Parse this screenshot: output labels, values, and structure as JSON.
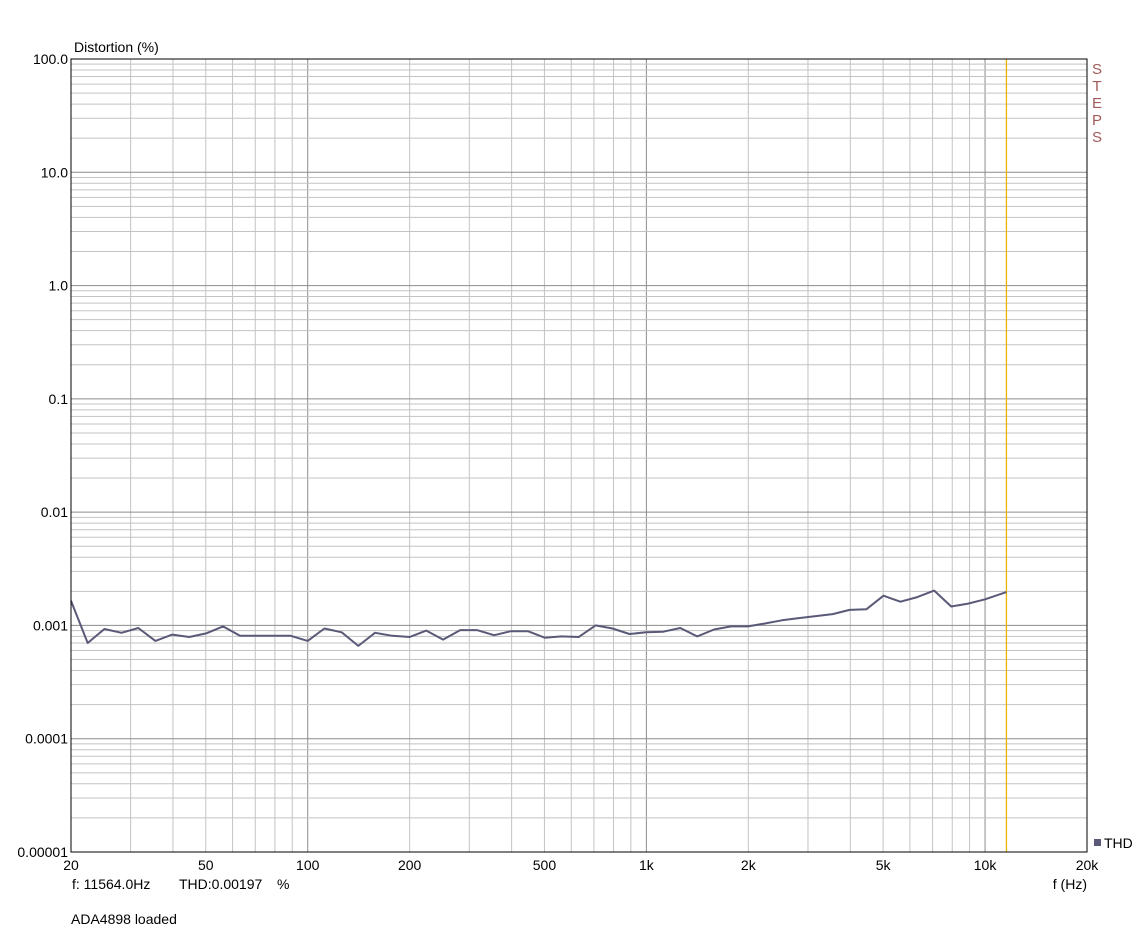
{
  "chart_data": {
    "type": "line",
    "ylabel": "Distortion (%)",
    "xlabel": "f (Hz)",
    "x_scale": "log",
    "y_scale": "log",
    "xlim": [
      20,
      20000
    ],
    "ylim": [
      1e-05,
      100
    ],
    "grid": true,
    "x_ticks": [
      {
        "value": 20,
        "label": "20"
      },
      {
        "value": 50,
        "label": "50"
      },
      {
        "value": 100,
        "label": "100"
      },
      {
        "value": 200,
        "label": "200"
      },
      {
        "value": 500,
        "label": "500"
      },
      {
        "value": 1000,
        "label": "1k"
      },
      {
        "value": 2000,
        "label": "2k"
      },
      {
        "value": 5000,
        "label": "5k"
      },
      {
        "value": 10000,
        "label": "10k"
      },
      {
        "value": 20000,
        "label": "20k"
      }
    ],
    "y_ticks": [
      {
        "value": 100,
        "label": "100.0"
      },
      {
        "value": 10,
        "label": "10.0"
      },
      {
        "value": 1,
        "label": "1.0"
      },
      {
        "value": 0.1,
        "label": "0.1"
      },
      {
        "value": 0.01,
        "label": "0.01"
      },
      {
        "value": 0.001,
        "label": "0.001"
      },
      {
        "value": 0.0001,
        "label": "0.0001"
      },
      {
        "value": 1e-05,
        "label": "0.00001"
      }
    ],
    "series": [
      {
        "name": "THD",
        "color": "#5a5a78",
        "x": [
          20,
          22.4,
          25.1,
          28.2,
          31.6,
          35.5,
          39.8,
          44.7,
          50.1,
          56.2,
          63.1,
          70.8,
          79.4,
          89.1,
          100,
          112,
          126,
          141,
          158,
          178,
          200,
          224,
          251,
          282,
          316,
          355,
          398,
          447,
          501,
          562,
          631,
          708,
          794,
          891,
          1000,
          1122,
          1259,
          1413,
          1585,
          1778,
          1995,
          2239,
          2512,
          2818,
          3162,
          3548,
          3981,
          4467,
          5012,
          5623,
          6310,
          7079,
          7943,
          8913,
          10000,
          11564
        ],
        "values": [
          0.00165,
          0.0007,
          0.00093,
          0.00086,
          0.00095,
          0.00073,
          0.00083,
          0.00079,
          0.00085,
          0.00098,
          0.00081,
          0.00081,
          0.00081,
          0.00081,
          0.00073,
          0.00094,
          0.00087,
          0.00066,
          0.00086,
          0.00081,
          0.00079,
          0.0009,
          0.00075,
          0.00091,
          0.00091,
          0.00082,
          0.00089,
          0.00089,
          0.00078,
          0.0008,
          0.00079,
          0.001,
          0.00094,
          0.00084,
          0.00087,
          0.00088,
          0.00095,
          0.0008,
          0.00092,
          0.00098,
          0.00098,
          0.00104,
          0.00111,
          0.00116,
          0.00121,
          0.00126,
          0.00137,
          0.00139,
          0.00183,
          0.00162,
          0.00178,
          0.00203,
          0.00147,
          0.00156,
          0.0017,
          0.00197
        ]
      }
    ],
    "cursor": {
      "x": 11564,
      "color": "#e8b400"
    },
    "legend_position": "bottom-right"
  },
  "readout": {
    "freq_label": "f: 11564.0Hz",
    "thd_label": "THD:0.00197",
    "unit": "%"
  },
  "status": "ADA4898 loaded",
  "watermark": [
    "S",
    "T",
    "E",
    "P",
    "S"
  ],
  "colors": {
    "grid_major": "#8c8c8c",
    "grid_minor": "#c3c3c3",
    "watermark": "#a05a5a"
  }
}
